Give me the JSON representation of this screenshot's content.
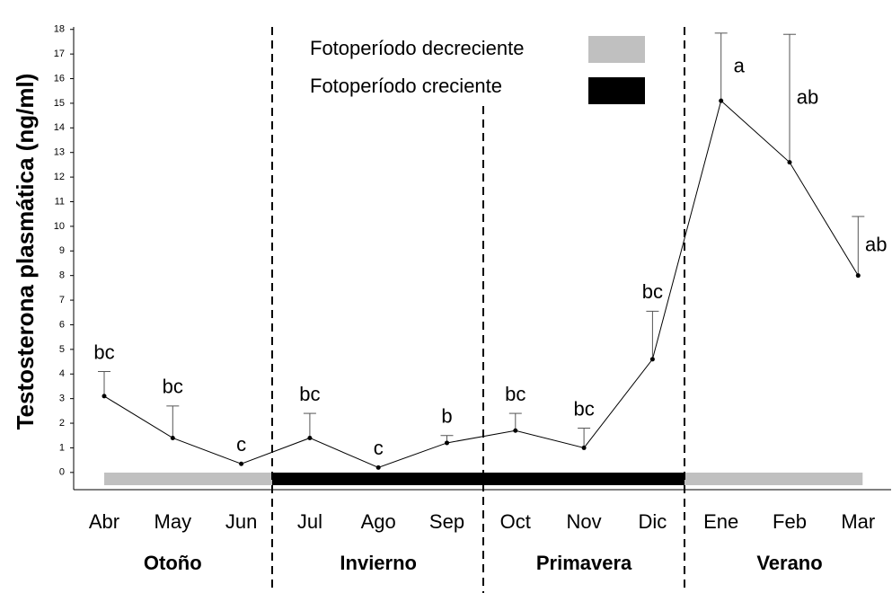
{
  "chart_data": {
    "type": "line",
    "ylabel": "Testosterona plasmática (ng/ml)",
    "categories": [
      "Abr",
      "May",
      "Jun",
      "Jul",
      "Ago",
      "Sep",
      "Oct",
      "Nov",
      "Dic",
      "Ene",
      "Feb",
      "Mar"
    ],
    "seasons": [
      "Otoño",
      "Invierno",
      "Primavera",
      "Verano"
    ],
    "series": [
      {
        "name": "Testosterona",
        "color": "#000000",
        "values": [
          3.1,
          1.4,
          0.35,
          1.4,
          0.2,
          1.2,
          1.7,
          1.0,
          4.6,
          15.1,
          12.6,
          8.0
        ],
        "errors": [
          1.0,
          1.3,
          null,
          1.0,
          null,
          0.3,
          0.7,
          0.8,
          1.95,
          2.75,
          5.2,
          2.4
        ],
        "letters": [
          "bc",
          "bc",
          "c",
          "bc",
          "c",
          "b",
          "bc",
          "bc",
          "bc",
          "a",
          "ab",
          "ab"
        ]
      }
    ],
    "photoperiod": [
      {
        "name": "Fotoperíodo decreciente",
        "color": "#c0c0c0"
      },
      {
        "name": "Fotoperíodo creciente",
        "color": "#000000"
      }
    ],
    "ylim": [
      -0.7,
      18.1
    ],
    "yticks": [
      0,
      1,
      2,
      3,
      4,
      5,
      6,
      7,
      8,
      9,
      10,
      11,
      12,
      13,
      14,
      15,
      16,
      17,
      18
    ]
  }
}
